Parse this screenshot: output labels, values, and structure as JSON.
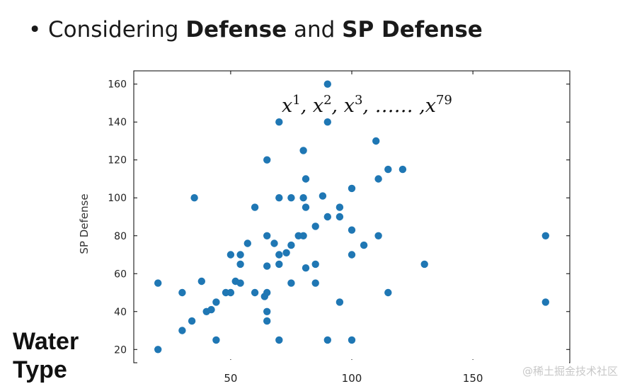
{
  "header": {
    "bullet": "•",
    "prefix": "Considering ",
    "term1": "Defense",
    "conjunction": " and ",
    "term2": "SP Defense"
  },
  "side_label": {
    "line1": "Water",
    "line2": "Type"
  },
  "watermark": "@稀土掘金技术社区",
  "chart_data": {
    "type": "scatter",
    "title": "",
    "xlabel": "",
    "ylabel": "SP Defense",
    "xlim": [
      10,
      190
    ],
    "ylim": [
      13,
      167
    ],
    "xticks": [
      50,
      100,
      150
    ],
    "yticks": [
      20,
      40,
      60,
      80,
      100,
      120,
      140,
      160
    ],
    "grid": false,
    "color": "#1f77b4",
    "annotation": {
      "base": "x",
      "terms": [
        "1",
        "2",
        "3",
        "79"
      ],
      "separator": ",",
      "ellipsis": "……"
    },
    "points": [
      [
        20,
        55
      ],
      [
        20,
        20
      ],
      [
        30,
        50
      ],
      [
        30,
        30
      ],
      [
        34,
        35
      ],
      [
        35,
        100
      ],
      [
        38,
        56
      ],
      [
        40,
        40
      ],
      [
        42,
        41
      ],
      [
        44,
        45
      ],
      [
        44,
        25
      ],
      [
        48,
        50
      ],
      [
        50,
        50
      ],
      [
        50,
        70
      ],
      [
        52,
        56
      ],
      [
        54,
        70
      ],
      [
        54,
        65
      ],
      [
        54,
        55
      ],
      [
        57,
        76
      ],
      [
        60,
        95
      ],
      [
        60,
        50
      ],
      [
        64,
        48
      ],
      [
        65,
        50
      ],
      [
        65,
        64
      ],
      [
        65,
        80
      ],
      [
        65,
        40
      ],
      [
        65,
        35
      ],
      [
        65,
        120
      ],
      [
        68,
        76
      ],
      [
        70,
        140
      ],
      [
        70,
        100
      ],
      [
        70,
        70
      ],
      [
        70,
        65
      ],
      [
        70,
        25
      ],
      [
        73,
        71
      ],
      [
        75,
        75
      ],
      [
        75,
        100
      ],
      [
        75,
        55
      ],
      [
        78,
        80
      ],
      [
        80,
        125
      ],
      [
        80,
        100
      ],
      [
        80,
        80
      ],
      [
        81,
        110
      ],
      [
        81,
        95
      ],
      [
        81,
        63
      ],
      [
        85,
        85
      ],
      [
        85,
        65
      ],
      [
        85,
        55
      ],
      [
        88,
        101
      ],
      [
        90,
        160
      ],
      [
        90,
        140
      ],
      [
        90,
        90
      ],
      [
        90,
        25
      ],
      [
        95,
        95
      ],
      [
        95,
        90
      ],
      [
        95,
        45
      ],
      [
        100,
        105
      ],
      [
        100,
        83
      ],
      [
        100,
        70
      ],
      [
        100,
        25
      ],
      [
        105,
        75
      ],
      [
        110,
        130
      ],
      [
        111,
        110
      ],
      [
        111,
        80
      ],
      [
        115,
        115
      ],
      [
        115,
        50
      ],
      [
        121,
        115
      ],
      [
        130,
        65
      ],
      [
        180,
        80
      ],
      [
        180,
        45
      ]
    ]
  }
}
